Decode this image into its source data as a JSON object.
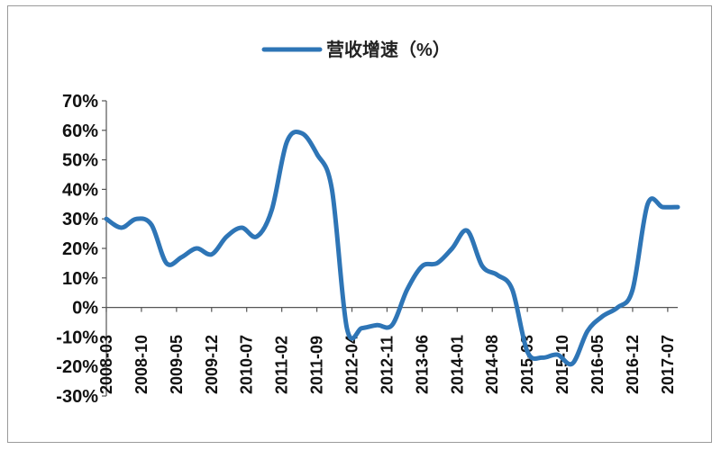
{
  "chart_data": {
    "type": "line",
    "title": "",
    "xlabel": "",
    "ylabel": "",
    "ylim": [
      -30,
      70
    ],
    "yticks": [
      "70%",
      "60%",
      "50%",
      "40%",
      "30%",
      "20%",
      "10%",
      "0%",
      "-10%",
      "-20%",
      "-30%"
    ],
    "xticks": [
      "2008-03",
      "2008-10",
      "2009-05",
      "2009-12",
      "2010-07",
      "2011-02",
      "2011-09",
      "2012-04",
      "2012-11",
      "2013-06",
      "2014-01",
      "2014-08",
      "2015-03",
      "2015-10",
      "2016-05",
      "2016-12",
      "2017-07"
    ],
    "legend": {
      "position": "top-center"
    },
    "grid": false,
    "series": [
      {
        "name": "营收增速（%）",
        "color": "#2E75B6",
        "x": [
          "2008-03",
          "2008-06",
          "2008-09",
          "2008-12",
          "2009-03",
          "2009-06",
          "2009-09",
          "2009-12",
          "2010-03",
          "2010-06",
          "2010-09",
          "2010-12",
          "2011-03",
          "2011-06",
          "2011-09",
          "2011-12",
          "2012-03",
          "2012-06",
          "2012-09",
          "2012-12",
          "2013-03",
          "2013-06",
          "2013-09",
          "2013-12",
          "2014-03",
          "2014-06",
          "2014-09",
          "2014-12",
          "2015-03",
          "2015-06",
          "2015-09",
          "2015-12",
          "2016-03",
          "2016-06",
          "2016-09",
          "2016-12",
          "2017-03",
          "2017-06",
          "2017-09"
        ],
        "values": [
          30,
          27,
          30,
          28,
          15,
          17,
          20,
          18,
          24,
          27,
          24,
          33,
          56,
          59,
          52,
          40,
          -7,
          -7,
          -6,
          -6,
          6,
          14,
          15,
          20,
          26,
          14,
          11,
          6,
          -15,
          -17,
          -16,
          -19,
          -8,
          -3,
          0,
          6,
          35,
          34,
          34
        ]
      }
    ]
  }
}
